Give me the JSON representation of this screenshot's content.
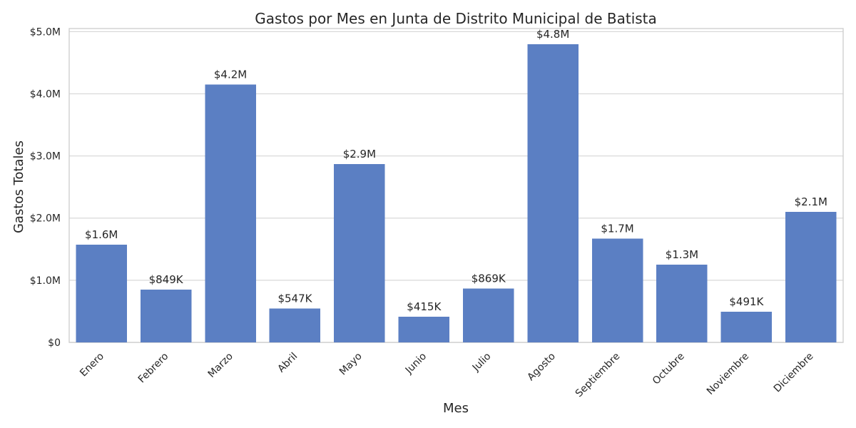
{
  "chart_data": {
    "type": "bar",
    "title": "Gastos por Mes en Junta de Distrito Municipal de Batista",
    "xlabel": "Mes",
    "ylabel": "Gastos Totales",
    "categories": [
      "Enero",
      "Febrero",
      "Marzo",
      "Abril",
      "Mayo",
      "Junio",
      "Julio",
      "Agosto",
      "Septiembre",
      "Octubre",
      "Noviembre",
      "Diciembre"
    ],
    "values": [
      1570000,
      849000,
      4150000,
      547000,
      2870000,
      415000,
      869000,
      4800000,
      1670000,
      1250000,
      491000,
      2100000
    ],
    "data_labels": [
      "$1.6M",
      "$849K",
      "$4.2M",
      "$547K",
      "$2.9M",
      "$415K",
      "$869K",
      "$4.8M",
      "$1.7M",
      "$1.3M",
      "$491K",
      "$2.1M"
    ],
    "y_ticks": [
      0,
      1000000,
      2000000,
      3000000,
      4000000,
      5000000
    ],
    "y_tick_labels": [
      "$0",
      "$1.0M",
      "$2.0M",
      "$3.0M",
      "$4.0M",
      "$5.0M"
    ],
    "ylim": [
      0,
      5050000
    ],
    "grid": true,
    "legend": "none",
    "bar_color": "#5b7fc3"
  }
}
